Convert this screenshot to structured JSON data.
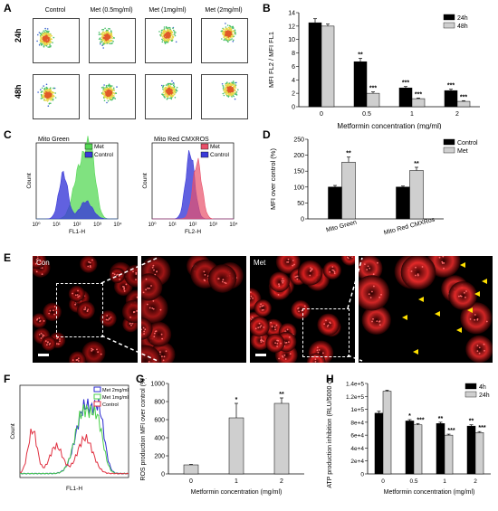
{
  "panelA": {
    "letter": "A",
    "columns": [
      "Control",
      "Met (0.5mg/ml)",
      "Met (1mg/ml)",
      "Met (2mg/ml)"
    ],
    "rows": [
      "24h",
      "48h"
    ]
  },
  "panelB": {
    "letter": "B",
    "chart_data": {
      "type": "bar",
      "categories": [
        "0",
        "0.5",
        "1",
        "2"
      ],
      "series": [
        {
          "name": "24h",
          "values": [
            12.5,
            6.7,
            2.8,
            2.4
          ],
          "errors": [
            0.6,
            0.5,
            0.2,
            0.2
          ],
          "sig": [
            "",
            "**",
            "***",
            "***"
          ],
          "color": "#000000"
        },
        {
          "name": "48h",
          "values": [
            12.0,
            2.0,
            1.2,
            0.8
          ],
          "errors": [
            0.3,
            0.2,
            0.1,
            0.1
          ],
          "sig": [
            "",
            "***",
            "***",
            "***"
          ],
          "color": "#cfcfcf"
        }
      ],
      "xlabel": "Metformin concentration (mg/ml)",
      "ylabel": "MFI FL2 / MFI FL1",
      "ylim": [
        0,
        14
      ],
      "yticks": [
        0,
        2,
        4,
        6,
        8,
        10,
        12,
        14
      ],
      "legend": "top-right"
    }
  },
  "panelC": {
    "letter": "C",
    "left": {
      "title": "Mito Green",
      "xlabel": "FL1-H",
      "ylabel": "Count",
      "legend": [
        "Met",
        "Control"
      ],
      "colors": [
        "#55d855",
        "#3a3ad8"
      ]
    },
    "right": {
      "title": "Mito Red CMXROS",
      "xlabel": "FL2-H",
      "ylabel": "Count",
      "legend": [
        "Met",
        "Control"
      ],
      "colors": [
        "#e8506a",
        "#3a3ad8"
      ]
    },
    "ticks": [
      "10⁰",
      "10¹",
      "10²",
      "10³",
      "10⁴"
    ]
  },
  "panelD": {
    "letter": "D",
    "chart_data": {
      "type": "bar",
      "categories": [
        "Mito Green",
        "Mito Red CMXRos"
      ],
      "series": [
        {
          "name": "Control",
          "values": [
            100,
            100
          ],
          "errors": [
            5,
            3
          ],
          "sig": [
            "",
            ""
          ],
          "color": "#000000"
        },
        {
          "name": "Met",
          "values": [
            178,
            152
          ],
          "errors": [
            16,
            10
          ],
          "sig": [
            "**",
            "**"
          ],
          "color": "#cfcfcf"
        }
      ],
      "ylabel": "MFI over control (%)",
      "ylim": [
        0,
        250
      ],
      "yticks": [
        0,
        50,
        100,
        150,
        200,
        250
      ],
      "legend": "top-right"
    }
  },
  "panelE": {
    "letter": "E",
    "labels": [
      "Con",
      "Met"
    ]
  },
  "panelF": {
    "letter": "F",
    "xlabel": "FL1-H",
    "ylabel": "Count",
    "legend": [
      "Met 2mg/ml",
      "Met 1mg/ml",
      "Control"
    ],
    "colors": [
      "#2a2ad0",
      "#4ad04a",
      "#e03040"
    ]
  },
  "panelG": {
    "letter": "G",
    "chart_data": {
      "type": "bar",
      "categories": [
        "0",
        "1",
        "2"
      ],
      "series": [
        {
          "values": [
            100,
            620,
            780
          ],
          "errors": [
            5,
            160,
            60
          ],
          "sig": [
            "",
            "*",
            "**"
          ],
          "color": "#cfcfcf"
        }
      ],
      "xlabel": "Metformin concentration (mg/ml)",
      "ylabel": "ROS production MFI over control (%)",
      "ylim": [
        0,
        1000
      ],
      "yticks": [
        0,
        200,
        400,
        600,
        800,
        1000
      ]
    }
  },
  "panelH": {
    "letter": "H",
    "chart_data": {
      "type": "bar",
      "categories": [
        "0",
        "0.5",
        "1",
        "2"
      ],
      "series": [
        {
          "name": "4h",
          "values": [
            94000,
            82000,
            78000,
            74000
          ],
          "errors": [
            3000,
            2000,
            2000,
            2000
          ],
          "sig": [
            "",
            "*",
            "**",
            "**"
          ],
          "color": "#000000"
        },
        {
          "name": "24h",
          "values": [
            128000,
            76000,
            60000,
            64000
          ],
          "errors": [
            1500,
            2000,
            1500,
            1500
          ],
          "sig": [
            "",
            "***",
            "***",
            "***"
          ],
          "color": "#cfcfcf"
        }
      ],
      "xlabel": "Metformin concentration (mg/ml)",
      "ylabel": "ATP production inhibition (RLU/5000 cells)",
      "ylim": [
        0,
        140000
      ],
      "yticks": [
        0,
        20000,
        40000,
        60000,
        80000,
        100000,
        120000,
        140000
      ],
      "yticklabels": [
        "0",
        "2e+4",
        "4e+4",
        "6e+4",
        "8e+4",
        "1e+5",
        "1.2e+5",
        "1.4e+5"
      ],
      "legend": "top-right"
    }
  }
}
